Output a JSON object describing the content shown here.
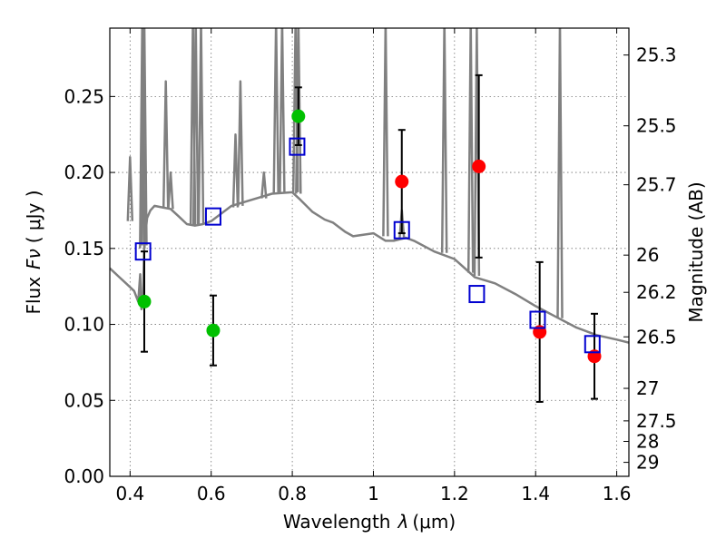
{
  "chart_data": {
    "type": "scatter",
    "xlabel": "Wavelength",
    "xlabel_symbol": "λ",
    "xlabel_unit": "(μm)",
    "ylabel": "Flux",
    "ylabel_symbol": "Fν",
    "ylabel_unit": "( μJy )",
    "ylabel_right": "Magnitude (AB)",
    "xlim": [
      0.35,
      1.63
    ],
    "ylim": [
      0.0,
      0.295
    ],
    "grid": true,
    "x_ticks": [
      0.4,
      0.6,
      0.8,
      1.0,
      1.2,
      1.4,
      1.6
    ],
    "x_tick_labels": [
      "0.4",
      "0.6",
      "0.8",
      "1",
      "1.2",
      "1.4",
      "1.6"
    ],
    "y_ticks": [
      0.0,
      0.05,
      0.1,
      0.15,
      0.2,
      0.25
    ],
    "y_tick_labels": [
      "0.00",
      "0.05",
      "0.10",
      "0.15",
      "0.20",
      "0.25"
    ],
    "mag_ticks": [
      {
        "label": "25.3",
        "flux": 0.2773
      },
      {
        "label": "25.5",
        "flux": 0.2307
      },
      {
        "label": "25.7",
        "flux": 0.1919
      },
      {
        "label": "26",
        "flux": 0.1456
      },
      {
        "label": "26.2",
        "flux": 0.1211
      },
      {
        "label": "26.5",
        "flux": 0.0918
      },
      {
        "label": "27",
        "flux": 0.0579
      },
      {
        "label": "27.5",
        "flux": 0.0365
      },
      {
        "label": "28",
        "flux": 0.023
      },
      {
        "label": "29",
        "flux": 0.0092
      }
    ],
    "series": [
      {
        "type": "line",
        "color": "#808080",
        "x": [
          0.35,
          0.37,
          0.39,
          0.41,
          0.42,
          0.425,
          0.428,
          0.432,
          0.435,
          0.438,
          0.442,
          0.45,
          0.46,
          0.48,
          0.5,
          0.52,
          0.54,
          0.56,
          0.58,
          0.6,
          0.62,
          0.65,
          0.7,
          0.75,
          0.8,
          0.82,
          0.85,
          0.88,
          0.9,
          0.93,
          0.95,
          1.0,
          1.03,
          1.05,
          1.08,
          1.1,
          1.15,
          1.2,
          1.25,
          1.3,
          1.35,
          1.4,
          1.45,
          1.5,
          1.55,
          1.6,
          1.63
        ],
        "y": [
          0.137,
          0.132,
          0.127,
          0.122,
          0.115,
          0.133,
          0.11,
          0.118,
          0.152,
          0.16,
          0.17,
          0.175,
          0.178,
          0.177,
          0.176,
          0.171,
          0.166,
          0.165,
          0.166,
          0.168,
          0.172,
          0.178,
          0.182,
          0.186,
          0.187,
          0.182,
          0.174,
          0.169,
          0.167,
          0.161,
          0.158,
          0.16,
          0.155,
          0.155,
          0.157,
          0.155,
          0.148,
          0.143,
          0.131,
          0.127,
          0.12,
          0.112,
          0.105,
          0.098,
          0.093,
          0.09,
          0.088
        ]
      },
      {
        "type": "emission_lines",
        "color": "#808080",
        "lines": [
          {
            "x": 0.4,
            "base": 0.168,
            "peak": 0.21
          },
          {
            "x": 0.43,
            "base": 0.15,
            "peak": 0.3
          },
          {
            "x": 0.435,
            "base": 0.152,
            "peak": 0.3
          },
          {
            "x": 0.488,
            "base": 0.177,
            "peak": 0.26
          },
          {
            "x": 0.5,
            "base": 0.176,
            "peak": 0.2
          },
          {
            "x": 0.555,
            "base": 0.165,
            "peak": 0.3
          },
          {
            "x": 0.562,
            "base": 0.165,
            "peak": 0.3
          },
          {
            "x": 0.575,
            "base": 0.166,
            "peak": 0.3
          },
          {
            "x": 0.66,
            "base": 0.177,
            "peak": 0.225
          },
          {
            "x": 0.672,
            "base": 0.178,
            "peak": 0.26
          },
          {
            "x": 0.73,
            "base": 0.183,
            "peak": 0.2
          },
          {
            "x": 0.76,
            "base": 0.186,
            "peak": 0.3
          },
          {
            "x": 0.775,
            "base": 0.186,
            "peak": 0.3
          },
          {
            "x": 0.808,
            "base": 0.187,
            "peak": 0.3
          },
          {
            "x": 0.815,
            "base": 0.186,
            "peak": 0.3
          },
          {
            "x": 1.03,
            "base": 0.158,
            "peak": 0.3
          },
          {
            "x": 1.07,
            "base": 0.156,
            "peak": 0.175
          },
          {
            "x": 1.175,
            "base": 0.147,
            "peak": 0.3
          },
          {
            "x": 1.24,
            "base": 0.134,
            "peak": 0.3
          },
          {
            "x": 1.255,
            "base": 0.132,
            "peak": 0.295
          },
          {
            "x": 1.46,
            "base": 0.104,
            "peak": 0.3
          }
        ]
      },
      {
        "type": "scatter",
        "marker": "circle",
        "color": "#00c000",
        "x": [
          0.435,
          0.605,
          0.815
        ],
        "y": [
          0.115,
          0.096,
          0.237
        ],
        "yerr": [
          0.033,
          0.023,
          0.019
        ]
      },
      {
        "type": "scatter",
        "marker": "circle",
        "color": "#ff0000",
        "x": [
          1.07,
          1.26,
          1.41,
          1.545
        ],
        "y": [
          0.194,
          0.204,
          0.095,
          0.079
        ],
        "yerr": [
          0.034,
          0.06,
          0.046,
          0.028
        ]
      },
      {
        "type": "scatter",
        "marker": "square",
        "color": "#0000d0",
        "x": [
          0.432,
          0.605,
          0.812,
          1.07,
          1.255,
          1.405,
          1.54
        ],
        "y": [
          0.148,
          0.171,
          0.217,
          0.162,
          0.12,
          0.103,
          0.087
        ]
      }
    ]
  }
}
